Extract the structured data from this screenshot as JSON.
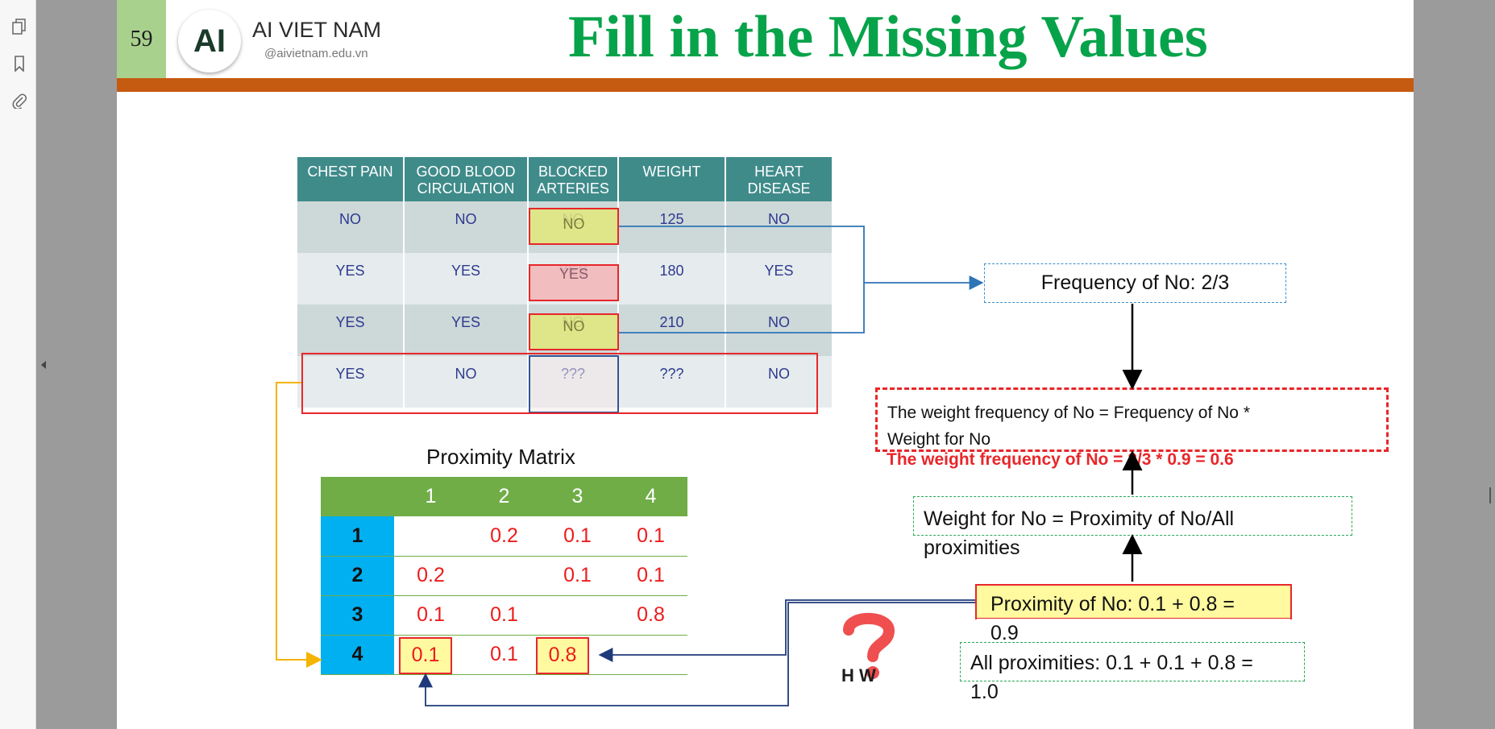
{
  "page_number": "59",
  "brand": {
    "logo": "AI",
    "name": "AI VIET NAM",
    "url": "@aivietnam.edu.vn"
  },
  "title": "Fill in the Missing Values",
  "data_table": {
    "headers": [
      [
        "CHEST PAIN",
        ""
      ],
      [
        "GOOD BLOOD",
        "CIRCULATION"
      ],
      [
        "BLOCKED",
        "ARTERIES"
      ],
      [
        "WEIGHT",
        ""
      ],
      [
        "HEART",
        "DISEASE"
      ]
    ],
    "rows": [
      [
        "NO",
        "NO",
        "NO",
        "125",
        "NO"
      ],
      [
        "YES",
        "YES",
        "YES",
        "180",
        "YES"
      ],
      [
        "YES",
        "YES",
        "NO",
        "210",
        "NO"
      ],
      [
        "YES",
        "NO",
        "???",
        "???",
        "NO"
      ]
    ]
  },
  "proximity_matrix": {
    "title": "Proximity Matrix",
    "col_headers": [
      "1",
      "2",
      "3",
      "4"
    ],
    "rows": [
      {
        "label": "1",
        "values": [
          "",
          "0.2",
          "0.1",
          "0.1"
        ]
      },
      {
        "label": "2",
        "values": [
          "0.2",
          "",
          "0.1",
          "0.1"
        ]
      },
      {
        "label": "3",
        "values": [
          "0.1",
          "0.1",
          "",
          "0.8"
        ]
      },
      {
        "label": "4",
        "values": [
          "0.1",
          "0.1",
          "0.8",
          ""
        ]
      }
    ]
  },
  "boxes": {
    "frequency": "Frequency of No: 2/3",
    "weighted_formula_1": "The weight frequency of No = Frequency of No *",
    "weighted_formula_2": "Weight for No",
    "weighted_result": "The weight frequency of No = 2/3 * 0.9 = 0.6",
    "weight_for_no_1": "Weight for No  = Proximity of No/All",
    "weight_for_no_2": "proximities",
    "proximity_no_1": "Proximity of No: 0.1 + 0.8 =",
    "proximity_no_2": "0.9",
    "all_prox_1": "All proximities: 0.1 + 0.1 + 0.8 =",
    "all_prox_2": "1.0"
  },
  "how_text": "H  W",
  "icons": [
    "pages-icon",
    "bookmark-icon",
    "attachment-icon",
    "collapse-arrow-icon",
    "question-icon"
  ],
  "colors": {
    "title": "#07a34a",
    "bar": "#c55a11",
    "table_header": "#3f8b8a",
    "matrix_header": "#70ad47",
    "matrix_row_header": "#00b0f0",
    "highlight_yellow": "#e2e77a",
    "highlight_red": "#f2b8b8"
  }
}
